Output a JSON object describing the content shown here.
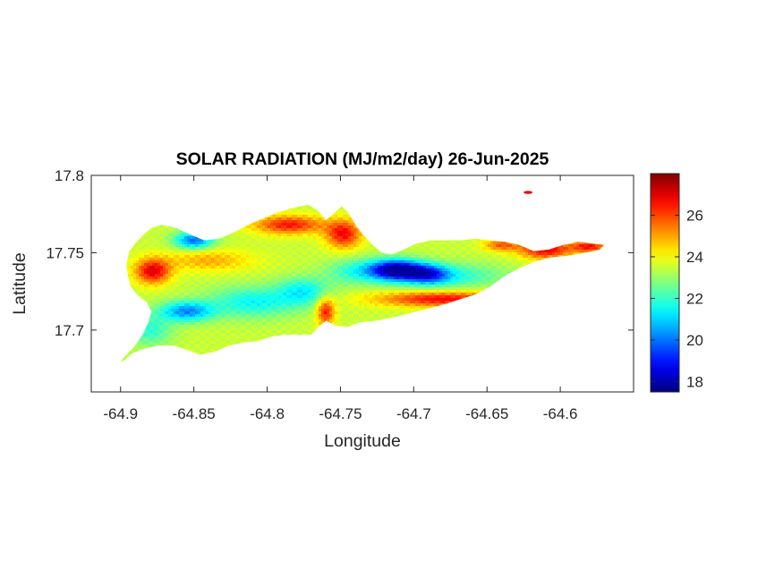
{
  "chart_data": {
    "type": "heatmap",
    "title": "SOLAR RADIATION (MJ/m2/day) 26-Jun-2025",
    "xlabel": "Longitude",
    "ylabel": "Latitude",
    "xlim": [
      -64.92,
      -64.55
    ],
    "ylim": [
      17.66,
      17.8
    ],
    "xticks": [
      -64.9,
      -64.85,
      -64.8,
      -64.75,
      -64.7,
      -64.65,
      -64.6
    ],
    "xtick_labels": [
      "-64.9",
      "-64.85",
      "-64.8",
      "-64.75",
      "-64.7",
      "-64.65",
      "-64.6"
    ],
    "yticks": [
      17.7,
      17.75,
      17.8
    ],
    "ytick_labels": [
      "17.7",
      "17.75",
      "17.8"
    ],
    "colormap": "jet",
    "clim": [
      17.5,
      28
    ],
    "colorbar_ticks": [
      18,
      20,
      22,
      24,
      26
    ],
    "colorbar_tick_labels": [
      "18",
      "20",
      "22",
      "24",
      "26"
    ],
    "grid": false,
    "island_outline_lonlat": [
      [
        -64.9,
        17.68
      ],
      [
        -64.895,
        17.685
      ],
      [
        -64.89,
        17.69
      ],
      [
        -64.885,
        17.697
      ],
      [
        -64.881,
        17.705
      ],
      [
        -64.879,
        17.712
      ],
      [
        -64.882,
        17.718
      ],
      [
        -64.888,
        17.722
      ],
      [
        -64.893,
        17.728
      ],
      [
        -64.895,
        17.735
      ],
      [
        -64.896,
        17.742
      ],
      [
        -64.894,
        17.751
      ],
      [
        -64.889,
        17.757
      ],
      [
        -64.884,
        17.762
      ],
      [
        -64.879,
        17.766
      ],
      [
        -64.872,
        17.768
      ],
      [
        -64.862,
        17.766
      ],
      [
        -64.853,
        17.762
      ],
      [
        -64.843,
        17.758
      ],
      [
        -64.833,
        17.759
      ],
      [
        -64.823,
        17.763
      ],
      [
        -64.813,
        17.768
      ],
      [
        -64.803,
        17.772
      ],
      [
        -64.793,
        17.776
      ],
      [
        -64.782,
        17.779
      ],
      [
        -64.772,
        17.781
      ],
      [
        -64.765,
        17.777
      ],
      [
        -64.76,
        17.771
      ],
      [
        -64.755,
        17.775
      ],
      [
        -64.749,
        17.78
      ],
      [
        -64.744,
        17.775
      ],
      [
        -64.739,
        17.767
      ],
      [
        -64.734,
        17.761
      ],
      [
        -64.728,
        17.755
      ],
      [
        -64.722,
        17.75
      ],
      [
        -64.715,
        17.749
      ],
      [
        -64.707,
        17.752
      ],
      [
        -64.698,
        17.756
      ],
      [
        -64.688,
        17.758
      ],
      [
        -64.678,
        17.758
      ],
      [
        -64.668,
        17.758
      ],
      [
        -64.658,
        17.759
      ],
      [
        -64.648,
        17.758
      ],
      [
        -64.638,
        17.757
      ],
      [
        -64.628,
        17.755
      ],
      [
        -64.618,
        17.751
      ],
      [
        -64.608,
        17.752
      ],
      [
        -64.598,
        17.755
      ],
      [
        -64.588,
        17.757
      ],
      [
        -64.578,
        17.756
      ],
      [
        -64.57,
        17.755
      ],
      [
        -64.573,
        17.752
      ],
      [
        -64.583,
        17.75
      ],
      [
        -64.595,
        17.748
      ],
      [
        -64.607,
        17.747
      ],
      [
        -64.618,
        17.744
      ],
      [
        -64.628,
        17.74
      ],
      [
        -64.638,
        17.735
      ],
      [
        -64.648,
        17.728
      ],
      [
        -64.658,
        17.723
      ],
      [
        -64.668,
        17.72
      ],
      [
        -64.678,
        17.717
      ],
      [
        -64.69,
        17.714
      ],
      [
        -64.702,
        17.711
      ],
      [
        -64.715,
        17.708
      ],
      [
        -64.726,
        17.706
      ],
      [
        -64.737,
        17.705
      ],
      [
        -64.745,
        17.702
      ],
      [
        -64.753,
        17.703
      ],
      [
        -64.76,
        17.706
      ],
      [
        -64.765,
        17.702
      ],
      [
        -64.77,
        17.697
      ],
      [
        -64.778,
        17.697
      ],
      [
        -64.788,
        17.697
      ],
      [
        -64.796,
        17.696
      ],
      [
        -64.806,
        17.693
      ],
      [
        -64.816,
        17.692
      ],
      [
        -64.826,
        17.69
      ],
      [
        -64.836,
        17.686
      ],
      [
        -64.846,
        17.684
      ],
      [
        -64.854,
        17.687
      ],
      [
        -64.864,
        17.69
      ],
      [
        -64.874,
        17.69
      ],
      [
        -64.884,
        17.688
      ],
      [
        -64.892,
        17.685
      ],
      [
        -64.898,
        17.68
      ]
    ],
    "islet_lonlat": [
      -64.622,
      17.789
    ],
    "field": {
      "base": 23.5,
      "features": [
        {
          "lon": -64.712,
          "lat": 17.739,
          "amp": -5.6,
          "slon": 0.018,
          "slat": 0.0065
        },
        {
          "lon": -64.69,
          "lat": 17.736,
          "amp": -3.0,
          "slon": 0.014,
          "slat": 0.006
        },
        {
          "lon": -64.68,
          "lat": 17.735,
          "amp": -1.8,
          "slon": 0.04,
          "slat": 0.008
        },
        {
          "lon": -64.74,
          "lat": 17.738,
          "amp": -1.5,
          "slon": 0.02,
          "slat": 0.008
        },
        {
          "lon": -64.85,
          "lat": 17.758,
          "amp": -3.6,
          "slon": 0.013,
          "slat": 0.0055
        },
        {
          "lon": -64.855,
          "lat": 17.712,
          "amp": -3.2,
          "slon": 0.018,
          "slat": 0.0065
        },
        {
          "lon": -64.81,
          "lat": 17.718,
          "amp": -2.0,
          "slon": 0.03,
          "slat": 0.01
        },
        {
          "lon": -64.775,
          "lat": 17.725,
          "amp": -2.0,
          "slon": 0.018,
          "slat": 0.009
        },
        {
          "lon": -64.88,
          "lat": 17.7,
          "amp": -1.6,
          "slon": 0.015,
          "slat": 0.01
        },
        {
          "lon": -64.878,
          "lat": 17.738,
          "amp": 3.5,
          "slon": 0.012,
          "slat": 0.008
        },
        {
          "lon": -64.785,
          "lat": 17.768,
          "amp": 3.0,
          "slon": 0.024,
          "slat": 0.006
        },
        {
          "lon": -64.748,
          "lat": 17.762,
          "amp": 3.2,
          "slon": 0.012,
          "slat": 0.009
        },
        {
          "lon": -64.76,
          "lat": 17.712,
          "amp": 3.0,
          "slon": 0.006,
          "slat": 0.009
        },
        {
          "lon": -64.68,
          "lat": 17.72,
          "amp": 3.2,
          "slon": 0.045,
          "slat": 0.005
        },
        {
          "lon": -64.61,
          "lat": 17.752,
          "amp": 3.4,
          "slon": 0.018,
          "slat": 0.006
        },
        {
          "lon": -64.58,
          "lat": 17.754,
          "amp": 3.0,
          "slon": 0.012,
          "slat": 0.004
        },
        {
          "lon": -64.64,
          "lat": 17.755,
          "amp": 2.2,
          "slon": 0.012,
          "slat": 0.004
        },
        {
          "lon": -64.84,
          "lat": 17.745,
          "amp": 1.4,
          "slon": 0.03,
          "slat": 0.007
        }
      ],
      "min": 17.8,
      "max": 27.9
    }
  }
}
